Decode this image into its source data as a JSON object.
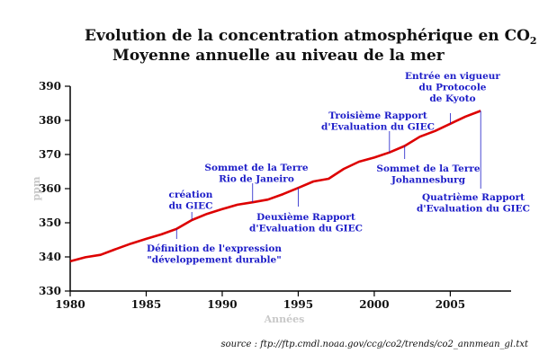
{
  "chart_data": {
    "type": "line",
    "title_main": "Evolution de la concentration atmosphérique en CO",
    "title_sub": "2",
    "subtitle": "Moyenne annuelle au niveau de la mer",
    "xlabel": "Années",
    "ylabel": "ppm",
    "xlim": [
      1980,
      2009
    ],
    "ylim": [
      330,
      390
    ],
    "x_ticks": [
      1980,
      1985,
      1990,
      1995,
      2000,
      2005
    ],
    "y_ticks": [
      330,
      340,
      350,
      360,
      370,
      380,
      390
    ],
    "line_color": "#dd0000",
    "annotation_color": "#1c1cc8",
    "grid": false,
    "series": [
      {
        "x": [
          1980,
          1981,
          1982,
          1983,
          1984,
          1985,
          1986,
          1987,
          1988,
          1989,
          1990,
          1991,
          1992,
          1993,
          1994,
          1995,
          1996,
          1997,
          1998,
          1999,
          2000,
          2001,
          2002,
          2003,
          2004,
          2005,
          2006,
          2007
        ],
        "values": [
          338.7,
          339.9,
          340.6,
          342.3,
          343.9,
          345.3,
          346.6,
          348.2,
          350.8,
          352.6,
          354.0,
          355.3,
          356.0,
          356.8,
          358.4,
          360.2,
          362.1,
          362.9,
          365.8,
          367.9,
          369.1,
          370.6,
          372.5,
          375.2,
          376.9,
          379.0,
          381.1,
          382.8
        ]
      }
    ],
    "annotations": [
      {
        "lines": [
          "Définition de l'expression",
          "\"développement durable\""
        ],
        "x": 1987
      },
      {
        "lines": [
          "création",
          "du GIEC"
        ],
        "x": 1988
      },
      {
        "lines": [
          "Sommet de la Terre",
          "Rio de Janeiro"
        ],
        "x": 1992
      },
      {
        "lines": [
          "Deuxième Rapport",
          "d'Evaluation du GIEC"
        ],
        "x": 1995
      },
      {
        "lines": [
          "Troisième Rapport",
          "d'Evaluation du GIEC"
        ],
        "x": 2001
      },
      {
        "lines": [
          "Sommet de la Terre",
          "Johannesburg"
        ],
        "x": 2002
      },
      {
        "lines": [
          "Entrée en vigueur",
          "du Protocole",
          "de Kyoto"
        ],
        "x": 2005
      },
      {
        "lines": [
          "Quatrième Rapport",
          "d'Evaluation du GIEC"
        ],
        "x": 2007
      }
    ],
    "source": "source : ftp://ftp.cmdl.noaa.gov/ccg/co2/trends/co2_annmean_gl.txt"
  }
}
